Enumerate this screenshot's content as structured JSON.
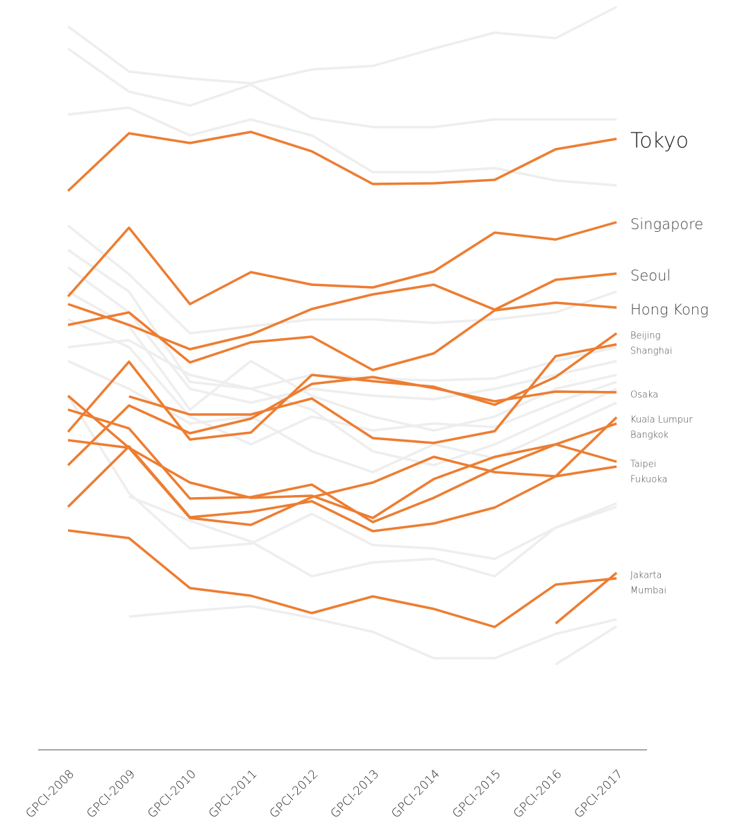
{
  "chart_data": {
    "type": "line",
    "categories": [
      "GPCI-2008",
      "GPCI-2009",
      "GPCI-2010",
      "GPCI-2011",
      "GPCI-2012",
      "GPCI-2013",
      "GPCI-2014",
      "GPCI-2015",
      "GPCI-2016",
      "GPCI-2017"
    ],
    "ylim": [
      0,
      1080
    ],
    "series": [
      {
        "color": "#eeeeee",
        "values": [
          1042,
          977,
          967,
          960,
          980,
          985,
          1010,
          1033,
          1025,
          1070
        ]
      },
      {
        "color": "#eeeeee",
        "values": [
          1010,
          948,
          928,
          958,
          910,
          897,
          897,
          908,
          908,
          908
        ]
      },
      {
        "color": "#eeeeee",
        "values": [
          915,
          925,
          885,
          908,
          885,
          832,
          832,
          838,
          820,
          813
        ]
      },
      {
        "color": "#eeeeee",
        "values": [
          755,
          685,
          600,
          610,
          620,
          620,
          615,
          620,
          630,
          660
        ]
      },
      {
        "color": "#eeeeee",
        "values": [
          720,
          660,
          530,
          520,
          540,
          535,
          532,
          535,
          560,
          580
        ]
      },
      {
        "color": "#eeeeee",
        "values": [
          695,
          630,
          520,
          500,
          520,
          510,
          505,
          520,
          540,
          560
        ]
      },
      {
        "color": "#eeeeee",
        "values": [
          660,
          610,
          490,
          560,
          510,
          480,
          460,
          480,
          520,
          540
        ]
      },
      {
        "color": "#eeeeee",
        "values": [
          620,
          580,
          480,
          440,
          480,
          460,
          470,
          465,
          500,
          530
        ]
      },
      {
        "color": "#eeeeee",
        "values": [
          580,
          590,
          540,
          520,
          490,
          430,
          410,
          440,
          480,
          520
        ]
      },
      {
        "color": "#eeeeee",
        "values": [
          560,
          520,
          470,
          480,
          430,
          400,
          440,
          420,
          460,
          500
        ]
      },
      {
        "color": "#eeeeee",
        "values": [
          510,
          370,
          290,
          297,
          340,
          295,
          290,
          275,
          320,
          350
        ]
      },
      {
        "color": "#eeeeee",
        "values": [
          null,
          365,
          330,
          300,
          250,
          270,
          275,
          250,
          320,
          355
        ]
      },
      {
        "color": "#eeeeee",
        "values": [
          null,
          192,
          200,
          207,
          190,
          170,
          132,
          132,
          167,
          188
        ]
      },
      {
        "color": "#eeeeee",
        "values": [
          null,
          null,
          null,
          null,
          null,
          null,
          null,
          null,
          123,
          178
        ]
      },
      {
        "name": "Tokyo",
        "color": "#ed7d31",
        "values": [
          805,
          888,
          874,
          890,
          862,
          815,
          816,
          821,
          865,
          880
        ]
      },
      {
        "name": "Singapore",
        "color": "#ed7d31",
        "values": [
          653,
          752,
          642,
          688,
          670,
          666,
          689,
          745,
          735,
          760
        ]
      },
      {
        "name": "Seoul",
        "color": "#ed7d31",
        "values": [
          642,
          612,
          577,
          598,
          635,
          656,
          670,
          634,
          677,
          686
        ]
      },
      {
        "name": "Hong Kong",
        "color": "#ed7d31",
        "values": [
          612,
          630,
          558,
          587,
          595,
          547,
          571,
          633,
          644,
          637
        ]
      },
      {
        "name": "Beijing",
        "color": "#ed7d31",
        "values": [
          458,
          559,
          447,
          457,
          540,
          531,
          523,
          497,
          537,
          600
        ]
      },
      {
        "name": "Shanghai",
        "color": "#ed7d31",
        "values": [
          null,
          509,
          483,
          483,
          506,
          449,
          442,
          459,
          567,
          584
        ]
      },
      {
        "name": "Osaka",
        "color": "#ed7d31",
        "values": [
          410,
          496,
          456,
          477,
          527,
          537,
          521,
          502,
          516,
          515
        ]
      },
      {
        "name": "Kuala Lumpur",
        "color": "#ed7d31",
        "values": [
          350,
          437,
          335,
          343,
          358,
          315,
          326,
          349,
          394,
          479
        ]
      },
      {
        "name": "Bangkok",
        "color": "#ed7d31",
        "values": [
          446,
          435,
          385,
          363,
          366,
          334,
          390,
          422,
          440,
          470
        ]
      },
      {
        "name": "Taipei",
        "color": "#ed7d31",
        "values": [
          490,
          463,
          362,
          364,
          382,
          328,
          363,
          405,
          440,
          415
        ]
      },
      {
        "name": "Fukuoka",
        "color": "#ed7d31",
        "values": [
          510,
          435,
          334,
          324,
          364,
          385,
          422,
          400,
          394,
          408
        ]
      },
      {
        "name": "Jakarta",
        "color": "#ed7d31",
        "values": [
          null,
          null,
          null,
          null,
          null,
          null,
          null,
          null,
          182,
          255
        ]
      },
      {
        "name": "Mumbai",
        "color": "#ed7d31",
        "values": [
          316,
          305,
          233,
          222,
          197,
          221,
          203,
          177,
          238,
          247
        ]
      }
    ]
  }
}
